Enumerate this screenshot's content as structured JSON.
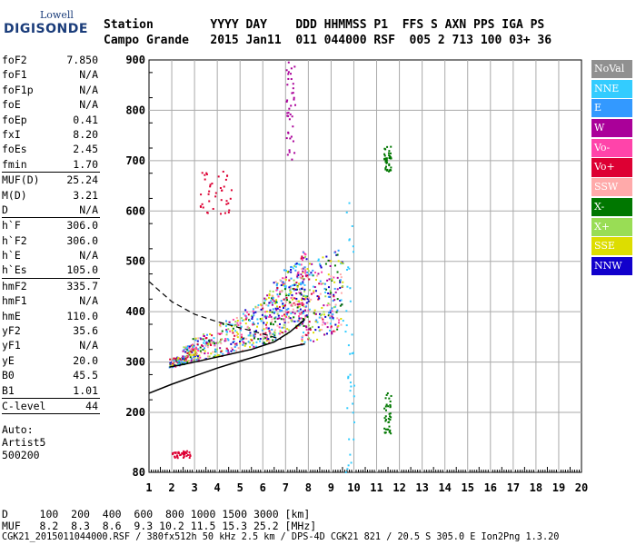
{
  "logo": {
    "top": "Lowell",
    "main": "DIGISONDE"
  },
  "header": {
    "line1": "Station        YYYY DAY    DDD HHMMSS P1  FFS S AXN PPS IGA PS",
    "line2": "Campo Grande   2015 Jan11  011 044000 RSF  005 2 713 100 03+ 36"
  },
  "params": [
    {
      "label": "foF2",
      "value": "7.850"
    },
    {
      "label": "foF1",
      "value": "N/A"
    },
    {
      "label": "foF1p",
      "value": "N/A"
    },
    {
      "label": "foE",
      "value": "N/A"
    },
    {
      "label": "foEp",
      "value": "0.41"
    },
    {
      "label": "fxI",
      "value": "8.20"
    },
    {
      "label": "foEs",
      "value": "2.45"
    },
    {
      "label": "fmin",
      "value": "1.70"
    },
    {
      "sep": true
    },
    {
      "label": "MUF(D)",
      "value": "25.24"
    },
    {
      "label": "M(D)",
      "value": "3.21"
    },
    {
      "label": "D",
      "value": "N/A"
    },
    {
      "sep": true
    },
    {
      "label": "h`F",
      "value": "306.0"
    },
    {
      "label": "h`F2",
      "value": "306.0"
    },
    {
      "label": "h`E",
      "value": "N/A"
    },
    {
      "label": "h`Es",
      "value": "105.0"
    },
    {
      "sep": true
    },
    {
      "label": "hmF2",
      "value": "335.7"
    },
    {
      "label": "hmF1",
      "value": "N/A"
    },
    {
      "label": "hmE",
      "value": "110.0"
    },
    {
      "label": "yF2",
      "value": "35.6"
    },
    {
      "label": "yF1",
      "value": "N/A"
    },
    {
      "label": "yE",
      "value": "20.0"
    },
    {
      "label": "B0",
      "value": "45.5"
    },
    {
      "label": "B1",
      "value": "1.01"
    },
    {
      "sep": true
    },
    {
      "label": "C-level",
      "value": "44"
    },
    {
      "sep": true
    }
  ],
  "auto": {
    "l1": "Auto:",
    "l2": "Artist5",
    "l3": "500200"
  },
  "legend": [
    {
      "label": "NoVal",
      "color": "#909090"
    },
    {
      "label": "NNE",
      "color": "#33ccff"
    },
    {
      "label": "E",
      "color": "#3399ff"
    },
    {
      "label": "W",
      "color": "#aa0099"
    },
    {
      "label": "Vo-",
      "color": "#ff44aa"
    },
    {
      "label": "Vo+",
      "color": "#dd0033"
    },
    {
      "label": "SSW",
      "color": "#ffaaaa"
    },
    {
      "label": "X-",
      "color": "#007700"
    },
    {
      "label": "X+",
      "color": "#99dd55"
    },
    {
      "label": "SSE",
      "color": "#dddd00"
    },
    {
      "label": "NNW",
      "color": "#1100cc"
    }
  ],
  "bottom": {
    "d_row": "D     100  200  400  600  800 1000 1500 3000 [km]",
    "muf_row": "MUF   8.2  8.3  8.6  9.3 10.2 11.5 15.3 25.2 [MHz]",
    "file_row": "CGK21_2015011044000.RSF / 380fx512h 50 kHz 2.5 km / DPS-4D CGK21 821 / 20.5 S 305.0 E Ion2Png 1.3.20"
  },
  "chart_data": {
    "type": "scatter",
    "x_ticks": [
      "1",
      "2",
      "3",
      "4",
      "5",
      "6",
      "7",
      "8",
      "9",
      "10",
      "11",
      "12",
      "13",
      "14",
      "15",
      "16",
      "17",
      "18",
      "19",
      "20"
    ],
    "y_ticks": [
      "80",
      "200",
      "300",
      "400",
      "500",
      "600",
      "700",
      "800",
      "900"
    ],
    "xlim": [
      1,
      20
    ],
    "ylim": [
      80,
      900
    ],
    "grid": true,
    "traces": [
      {
        "name": "o-trace",
        "x": [
          1.9,
          2.5,
          3.0,
          4.0,
          5.0,
          6.0,
          6.5,
          7.0,
          7.5,
          7.85
        ],
        "y": [
          290,
          300,
          308,
          318,
          332,
          345,
          360,
          370,
          385,
          395
        ]
      },
      {
        "name": "profile",
        "x": [
          1.9,
          2.5,
          3.5,
          4.5,
          5.5,
          6.5,
          7.2,
          7.85
        ],
        "y": [
          290,
          295,
          305,
          315,
          325,
          340,
          360,
          385
        ]
      },
      {
        "name": "lower-solid",
        "x": [
          1.0,
          2.0,
          3.0,
          4.0,
          5.0,
          6.0,
          7.0,
          7.85
        ],
        "y": [
          238,
          256,
          272,
          288,
          302,
          315,
          328,
          336
        ]
      },
      {
        "name": "upper-dashed",
        "x": [
          1.0,
          1.5,
          2.0,
          3.0,
          4.0,
          5.0,
          6.0,
          6.8
        ],
        "y": [
          460,
          440,
          420,
          395,
          380,
          368,
          356,
          345
        ]
      }
    ],
    "spots": [
      {
        "x": [
          2.0,
          2.8
        ],
        "y": [
          110,
          125
        ],
        "color": "#dd0033"
      },
      {
        "x": [
          3.2,
          4.6
        ],
        "y": [
          595,
          680
        ],
        "color": "#dd0033"
      },
      {
        "x": [
          11.3,
          11.6
        ],
        "y": [
          150,
          240
        ],
        "color": "#007700"
      },
      {
        "x": [
          11.3,
          11.6
        ],
        "y": [
          680,
          730
        ],
        "color": "#007700"
      },
      {
        "x": [
          9.6,
          10.0
        ],
        "y": [
          80,
          650
        ],
        "color": "#33ccff"
      },
      {
        "x": [
          7.0,
          7.4
        ],
        "y": [
          700,
          900
        ],
        "color": "#aa0099"
      }
    ]
  }
}
